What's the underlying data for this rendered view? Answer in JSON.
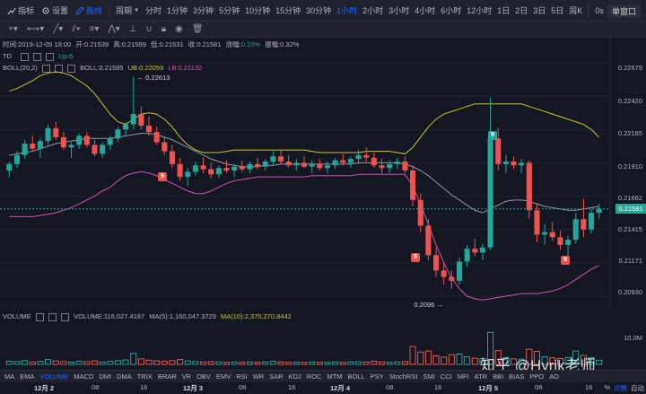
{
  "toolbar": {
    "indicator_label": "指标",
    "settings_label": "设置",
    "draw_label": "画线",
    "period_label": "周期",
    "timeframes": [
      "分时",
      "1分钟",
      "3分钟",
      "5分钟",
      "10分钟",
      "15分钟",
      "30分钟",
      "1小时",
      "2小时",
      "3小时",
      "4小时",
      "6小时",
      "12小时",
      "1日",
      "2日",
      "3日",
      "5日",
      "周K"
    ],
    "active_timeframe": "1小时",
    "clock": "0s",
    "window_mode": "单窗口"
  },
  "ohlc": {
    "time_label": "时间:2019-12-05 18:00",
    "open_label": "开:0.21539",
    "high_label": "高:0.21599",
    "low_label": "低:0.21531",
    "close_label": "收:0.21581",
    "change_prefix": "涨幅:",
    "change_value": "0.15%",
    "amplitude_label": "振幅:0.32%"
  },
  "td": {
    "name": "TD",
    "up_label": "Up:6"
  },
  "boll": {
    "name": "BOLL(20,2)",
    "boll_value": "BOLL:0.21595",
    "ub_value": "UB:0.22059",
    "lb_value": "LB:0.21132"
  },
  "volume": {
    "name": "VOLUME",
    "value": "VOLUME:116,027.4187",
    "ma5": "MA(5):1,160,047.3729",
    "ma10": "MA(10):2,370,270.8442",
    "axis_label": "10.0M"
  },
  "price_axis": [
    "0.22679",
    "0.22420",
    "0.22165",
    "0.21910",
    "0.21662",
    "0.21415",
    "0.21171",
    "0.20930"
  ],
  "current_price": "0.21581",
  "annotations": {
    "high": "0.22613",
    "low": "0.2096"
  },
  "td_badges": [
    "9",
    "9",
    "9",
    "9"
  ],
  "indicators": [
    "MA",
    "EMA",
    "VOLUME",
    "MACD",
    "DMI",
    "DMA",
    "TRIX",
    "BRAR",
    "VR",
    "OBV",
    "EMV",
    "RSI",
    "WR",
    "SAR",
    "KDJ",
    "ROC",
    "MTM",
    "BOLL",
    "PSY",
    "StochRSI",
    "SMI",
    "CCI",
    "MFI",
    "ATR",
    "BBI",
    "BIAS",
    "PPO",
    "AO"
  ],
  "active_indicator": "VOLUME",
  "time_axis": [
    {
      "label": "12月 2",
      "bold": true
    },
    {
      "label": "08",
      "bold": false
    },
    {
      "label": "16",
      "bold": false
    },
    {
      "label": "12月 3",
      "bold": true
    },
    {
      "label": "08",
      "bold": false
    },
    {
      "label": "16",
      "bold": false
    },
    {
      "label": "12月 4",
      "bold": true
    },
    {
      "label": "08",
      "bold": false
    },
    {
      "label": "16",
      "bold": false
    },
    {
      "label": "12月 5",
      "bold": true
    },
    {
      "label": "08",
      "bold": false
    },
    {
      "label": "16",
      "bold": false
    }
  ],
  "scale_controls": {
    "percent": "%",
    "log": "对数",
    "auto": "自动"
  },
  "watermark": "知乎 @Hyrik老师",
  "colors": {
    "up": "#26a69a",
    "down": "#ef5350",
    "ub": "#c9c33a",
    "mid": "#9598a1",
    "lb": "#d64fb5",
    "accent": "#2962ff"
  },
  "chart_data": {
    "type": "candlestick",
    "series_ranges": {
      "price_min": 0.209,
      "price_max": 0.2272
    },
    "candles": [
      [
        0.2188,
        0.2195,
        0.2183,
        0.2193
      ],
      [
        0.2193,
        0.2203,
        0.219,
        0.22
      ],
      [
        0.22,
        0.2212,
        0.2197,
        0.2209
      ],
      [
        0.2209,
        0.2215,
        0.2203,
        0.2205
      ],
      [
        0.2205,
        0.2213,
        0.2198,
        0.2211
      ],
      [
        0.2211,
        0.2224,
        0.2208,
        0.2221
      ],
      [
        0.2221,
        0.2226,
        0.2212,
        0.2214
      ],
      [
        0.2214,
        0.2218,
        0.2204,
        0.2206
      ],
      [
        0.2206,
        0.221,
        0.2198,
        0.2208
      ],
      [
        0.2208,
        0.2217,
        0.2205,
        0.2215
      ],
      [
        0.2215,
        0.2218,
        0.2206,
        0.2208
      ],
      [
        0.2208,
        0.2212,
        0.2199,
        0.2201
      ],
      [
        0.2201,
        0.221,
        0.2198,
        0.2208
      ],
      [
        0.2208,
        0.2215,
        0.2204,
        0.2213
      ],
      [
        0.2213,
        0.2222,
        0.221,
        0.222
      ],
      [
        0.222,
        0.2226,
        0.2215,
        0.2224
      ],
      [
        0.2224,
        0.2261,
        0.222,
        0.2232
      ],
      [
        0.2232,
        0.2238,
        0.222,
        0.2223
      ],
      [
        0.2223,
        0.223,
        0.2215,
        0.2218
      ],
      [
        0.2218,
        0.2222,
        0.2208,
        0.221
      ],
      [
        0.221,
        0.2214,
        0.22,
        0.2203
      ],
      [
        0.2203,
        0.2208,
        0.219,
        0.2193
      ],
      [
        0.2193,
        0.2198,
        0.218,
        0.2183
      ],
      [
        0.2183,
        0.219,
        0.2176,
        0.2187
      ],
      [
        0.2187,
        0.2195,
        0.2184,
        0.2192
      ],
      [
        0.2192,
        0.2198,
        0.2186,
        0.2189
      ],
      [
        0.2189,
        0.2194,
        0.2182,
        0.2185
      ],
      [
        0.2185,
        0.2192,
        0.2182,
        0.219
      ],
      [
        0.219,
        0.2196,
        0.2186,
        0.2188
      ],
      [
        0.2188,
        0.2193,
        0.2183,
        0.2191
      ],
      [
        0.2191,
        0.2196,
        0.2187,
        0.2189
      ],
      [
        0.2189,
        0.2195,
        0.2186,
        0.2193
      ],
      [
        0.2193,
        0.2198,
        0.2189,
        0.2191
      ],
      [
        0.2191,
        0.2197,
        0.2188,
        0.2195
      ],
      [
        0.2195,
        0.2203,
        0.2192,
        0.2199
      ],
      [
        0.2199,
        0.2204,
        0.2193,
        0.2195
      ],
      [
        0.2195,
        0.22,
        0.219,
        0.2192
      ],
      [
        0.2192,
        0.2197,
        0.2188,
        0.2194
      ],
      [
        0.2194,
        0.2199,
        0.219,
        0.2191
      ],
      [
        0.2191,
        0.2196,
        0.2186,
        0.2193
      ],
      [
        0.2193,
        0.2197,
        0.2188,
        0.219
      ],
      [
        0.219,
        0.2195,
        0.2186,
        0.2192
      ],
      [
        0.2192,
        0.2198,
        0.2189,
        0.2196
      ],
      [
        0.2196,
        0.2201,
        0.2192,
        0.2194
      ],
      [
        0.2194,
        0.2199,
        0.219,
        0.2197
      ],
      [
        0.2197,
        0.2204,
        0.2193,
        0.22
      ],
      [
        0.22,
        0.2206,
        0.2195,
        0.2198
      ],
      [
        0.2198,
        0.2202,
        0.219,
        0.2192
      ],
      [
        0.2192,
        0.2197,
        0.2186,
        0.219
      ],
      [
        0.219,
        0.2196,
        0.2186,
        0.2193
      ],
      [
        0.2193,
        0.2198,
        0.2189,
        0.2195
      ],
      [
        0.2195,
        0.2199,
        0.2186,
        0.2188
      ],
      [
        0.2188,
        0.2192,
        0.216,
        0.2165
      ],
      [
        0.2165,
        0.217,
        0.214,
        0.2145
      ],
      [
        0.2145,
        0.215,
        0.2118,
        0.2122
      ],
      [
        0.2122,
        0.2128,
        0.2105,
        0.211
      ],
      [
        0.211,
        0.2116,
        0.2099,
        0.2105
      ],
      [
        0.2105,
        0.211,
        0.2096,
        0.2102
      ],
      [
        0.2102,
        0.212,
        0.2099,
        0.2117
      ],
      [
        0.2117,
        0.213,
        0.2113,
        0.2127
      ],
      [
        0.2127,
        0.2135,
        0.2121,
        0.2124
      ],
      [
        0.2124,
        0.2131,
        0.2118,
        0.2128
      ],
      [
        0.2128,
        0.2245,
        0.2126,
        0.2213
      ],
      [
        0.2213,
        0.2221,
        0.2188,
        0.2193
      ],
      [
        0.2193,
        0.22,
        0.2186,
        0.2195
      ],
      [
        0.2195,
        0.2199,
        0.2189,
        0.2192
      ],
      [
        0.2192,
        0.2197,
        0.2186,
        0.2194
      ],
      [
        0.2194,
        0.2196,
        0.215,
        0.2157
      ],
      [
        0.2157,
        0.2162,
        0.2132,
        0.2138
      ],
      [
        0.2138,
        0.2146,
        0.213,
        0.214
      ],
      [
        0.214,
        0.2148,
        0.2133,
        0.2136
      ],
      [
        0.2136,
        0.2141,
        0.2126,
        0.213
      ],
      [
        0.213,
        0.2137,
        0.212,
        0.2134
      ],
      [
        0.2134,
        0.2155,
        0.2131,
        0.215
      ],
      [
        0.215,
        0.2166,
        0.2136,
        0.2142
      ],
      [
        0.2142,
        0.2158,
        0.2139,
        0.2155
      ],
      [
        0.2155,
        0.2162,
        0.215,
        0.2158
      ]
    ],
    "ub": [
      0.225,
      0.2252,
      0.2255,
      0.2258,
      0.2262,
      0.2264,
      0.2265,
      0.2264,
      0.2262,
      0.2258,
      0.2254,
      0.2248,
      0.224,
      0.2232,
      0.2226,
      0.2224,
      0.2228,
      0.2232,
      0.2233,
      0.2232,
      0.2228,
      0.2222,
      0.2214,
      0.2208,
      0.2204,
      0.2202,
      0.2202,
      0.2202,
      0.2203,
      0.2204,
      0.2204,
      0.2204,
      0.2204,
      0.2204,
      0.2204,
      0.2204,
      0.2204,
      0.2204,
      0.2204,
      0.2203,
      0.2202,
      0.2202,
      0.2202,
      0.2202,
      0.2202,
      0.2202,
      0.2203,
      0.2203,
      0.2203,
      0.2203,
      0.2202,
      0.2201,
      0.2206,
      0.2214,
      0.2222,
      0.2228,
      0.2232,
      0.2234,
      0.2236,
      0.2238,
      0.224,
      0.224,
      0.224,
      0.224,
      0.224,
      0.224,
      0.224,
      0.2238,
      0.2236,
      0.2234,
      0.2232,
      0.223,
      0.2228,
      0.2226,
      0.2224,
      0.222,
      0.2214
    ],
    "mid": [
      0.22,
      0.2201,
      0.2202,
      0.2203,
      0.2205,
      0.2207,
      0.2209,
      0.221,
      0.2211,
      0.2212,
      0.2213,
      0.2213,
      0.2213,
      0.2213,
      0.2214,
      0.2215,
      0.2216,
      0.2217,
      0.2217,
      0.2216,
      0.2214,
      0.2212,
      0.2209,
      0.2206,
      0.2203,
      0.22,
      0.2197,
      0.2195,
      0.2193,
      0.2192,
      0.2191,
      0.2191,
      0.2191,
      0.2192,
      0.2192,
      0.2193,
      0.2193,
      0.2193,
      0.2193,
      0.2193,
      0.2193,
      0.2193,
      0.2193,
      0.2193,
      0.2193,
      0.2194,
      0.2194,
      0.2194,
      0.2194,
      0.2194,
      0.2194,
      0.2193,
      0.2191,
      0.2188,
      0.2184,
      0.2179,
      0.2174,
      0.2169,
      0.2165,
      0.2161,
      0.2157,
      0.2155,
      0.2158,
      0.2161,
      0.2164,
      0.2165,
      0.2165,
      0.2164,
      0.2162,
      0.216,
      0.2159,
      0.2158,
      0.2157,
      0.2157,
      0.2158,
      0.2159,
      0.216
    ],
    "lb": [
      0.2152,
      0.2152,
      0.2152,
      0.2152,
      0.2153,
      0.2154,
      0.2155,
      0.2157,
      0.2159,
      0.2162,
      0.2165,
      0.2168,
      0.2172,
      0.2175,
      0.218,
      0.2184,
      0.2186,
      0.2187,
      0.2186,
      0.2184,
      0.2181,
      0.2178,
      0.2175,
      0.2172,
      0.217,
      0.217,
      0.2172,
      0.2175,
      0.2178,
      0.218,
      0.2181,
      0.2182,
      0.2183,
      0.2183,
      0.2183,
      0.2183,
      0.2183,
      0.2183,
      0.2183,
      0.2184,
      0.2184,
      0.2184,
      0.2184,
      0.2184,
      0.2184,
      0.2185,
      0.2185,
      0.2185,
      0.2185,
      0.2185,
      0.2185,
      0.2185,
      0.2176,
      0.2162,
      0.2146,
      0.213,
      0.2116,
      0.2104,
      0.2096,
      0.209,
      0.2088,
      0.2087,
      0.2088,
      0.2089,
      0.209,
      0.2091,
      0.2092,
      0.2092,
      0.2092,
      0.2093,
      0.2094,
      0.2096,
      0.2099,
      0.2103,
      0.2107,
      0.2111,
      0.2114
    ],
    "volumes": [
      0.9,
      0.8,
      1.1,
      0.7,
      0.9,
      1.4,
      1.0,
      0.8,
      0.7,
      0.9,
      0.8,
      1.0,
      0.7,
      0.9,
      1.1,
      1.3,
      3.2,
      1.6,
      1.2,
      1.0,
      0.9,
      1.1,
      1.4,
      1.0,
      0.8,
      0.7,
      0.8,
      0.7,
      0.6,
      0.7,
      0.6,
      0.7,
      0.6,
      0.7,
      0.9,
      0.7,
      0.6,
      0.6,
      0.6,
      0.7,
      0.6,
      0.6,
      0.7,
      0.6,
      0.7,
      0.8,
      0.7,
      0.9,
      0.7,
      0.6,
      0.7,
      0.8,
      5.2,
      3.6,
      3.9,
      2.5,
      2.1,
      2.8,
      3.0,
      2.2,
      1.8,
      1.7,
      9.3,
      4.0,
      2.0,
      1.6,
      1.5,
      4.4,
      3.8,
      2.2,
      1.9,
      1.7,
      2.0,
      3.9,
      2.6,
      2.0,
      1.2
    ],
    "volume_max": 12
  }
}
